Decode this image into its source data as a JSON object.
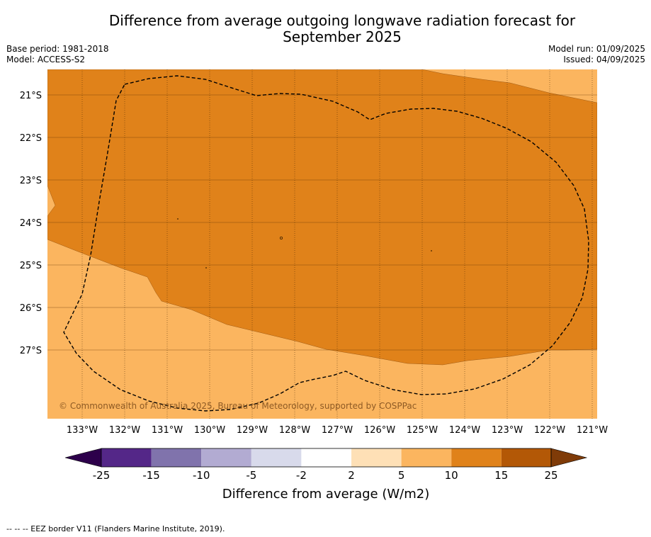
{
  "title": {
    "line1": "Difference from average outgoing longwave radiation forecast for",
    "line2": "September 2025"
  },
  "meta_left": {
    "base_period": "Base period: 1981-2018",
    "model": "Model: ACCESS-S2"
  },
  "meta_right": {
    "model_run": "Model run: 01/09/2025",
    "issued": "Issued: 04/09/2025"
  },
  "map": {
    "lat_labels": [
      "21°S",
      "22°S",
      "23°S",
      "24°S",
      "25°S",
      "26°S",
      "27°S"
    ],
    "lon_labels": [
      "133°W",
      "132°W",
      "131°W",
      "130°W",
      "129°W",
      "128°W",
      "127°W",
      "126°W",
      "125°W",
      "124°W",
      "123°W",
      "122°W",
      "121°W"
    ],
    "copyright": "© Commonwealth of Australia 2025, Bureau of Meteorology, supported by COSPPac",
    "colors": {
      "band_10_15": "#e0821a",
      "band_5_10": "#fbb55f",
      "eez_border": "#000000"
    }
  },
  "colorbar": {
    "tick_labels": [
      "-25",
      "-15",
      "-10",
      "-5",
      "-2",
      "2",
      "5",
      "10",
      "15",
      "25"
    ],
    "colors": [
      "#2d004b",
      "#542788",
      "#8073ac",
      "#b2abd2",
      "#d8daeb",
      "#ffffff",
      "#fee0b6",
      "#fbb55f",
      "#e0821a",
      "#b35806",
      "#7f3b08"
    ],
    "label": "Difference from average (W/m2)"
  },
  "footer": "--  --  -- EEZ border V11 (Flanders Marine Institute, 2019)."
}
